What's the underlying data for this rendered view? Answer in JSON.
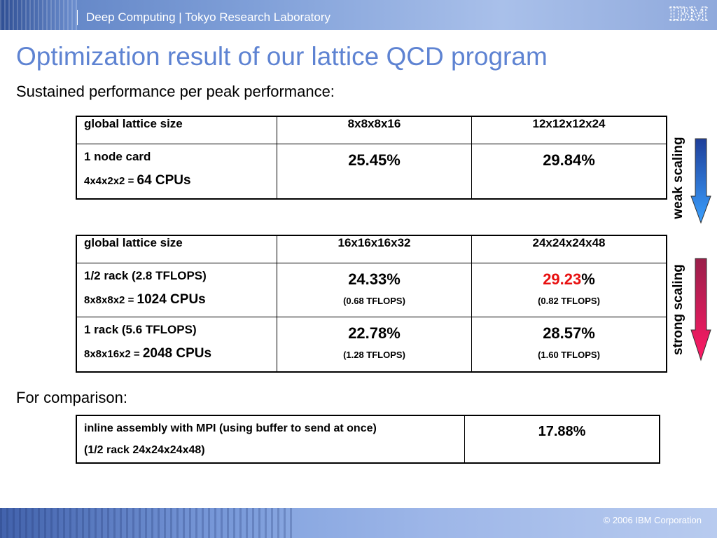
{
  "header": {
    "text": "Deep Computing | Tokyo Research Laboratory",
    "logo_text": "IBM"
  },
  "title": "Optimization result of our lattice QCD program",
  "subtitle": "Sustained performance per peak performance:",
  "table1": {
    "header": [
      "global lattice size",
      "8x8x8x16",
      "12x12x12x24"
    ],
    "row": {
      "label": "1 node card",
      "config_prefix": "4x4x2x2 = ",
      "config_cpus": "64 CPUs",
      "values": [
        "25.45%",
        "29.84%"
      ]
    }
  },
  "table2": {
    "header": [
      "global lattice size",
      "16x16x16x32",
      "24x24x24x48"
    ],
    "rows": [
      {
        "label": "1/2 rack (2.8 TFLOPS)",
        "config_prefix": "8x8x8x2 = ",
        "config_cpus": "1024 CPUs",
        "v1": "24.33%",
        "s1": "(0.68 TFLOPS)",
        "v2_highlight": "29.23",
        "v2_suffix": "%",
        "s2": "(0.82 TFLOPS)"
      },
      {
        "label": "1 rack (5.6 TFLOPS)",
        "config_prefix": "8x8x16x2 = ",
        "config_cpus": "2048 CPUs",
        "v1": "22.78%",
        "s1": "(1.28 TFLOPS)",
        "v2": "28.57%",
        "s2": "(1.60 TFLOPS)"
      }
    ]
  },
  "arrows": {
    "weak": {
      "label": "weak scaling",
      "color": "#3a8ef0"
    },
    "strong": {
      "label": "strong scaling",
      "color": "#e8125a"
    }
  },
  "comparison": {
    "label": "For comparison:",
    "line1": "inline assembly with MPI (using buffer to send at once)",
    "line2": "(1/2 rack 24x24x24x48)",
    "value": "17.88%"
  },
  "footer": {
    "copyright": "© 2006 IBM Corporation"
  },
  "colors": {
    "title_blue": "#5e83d2",
    "highlight_red": "#e81010"
  }
}
